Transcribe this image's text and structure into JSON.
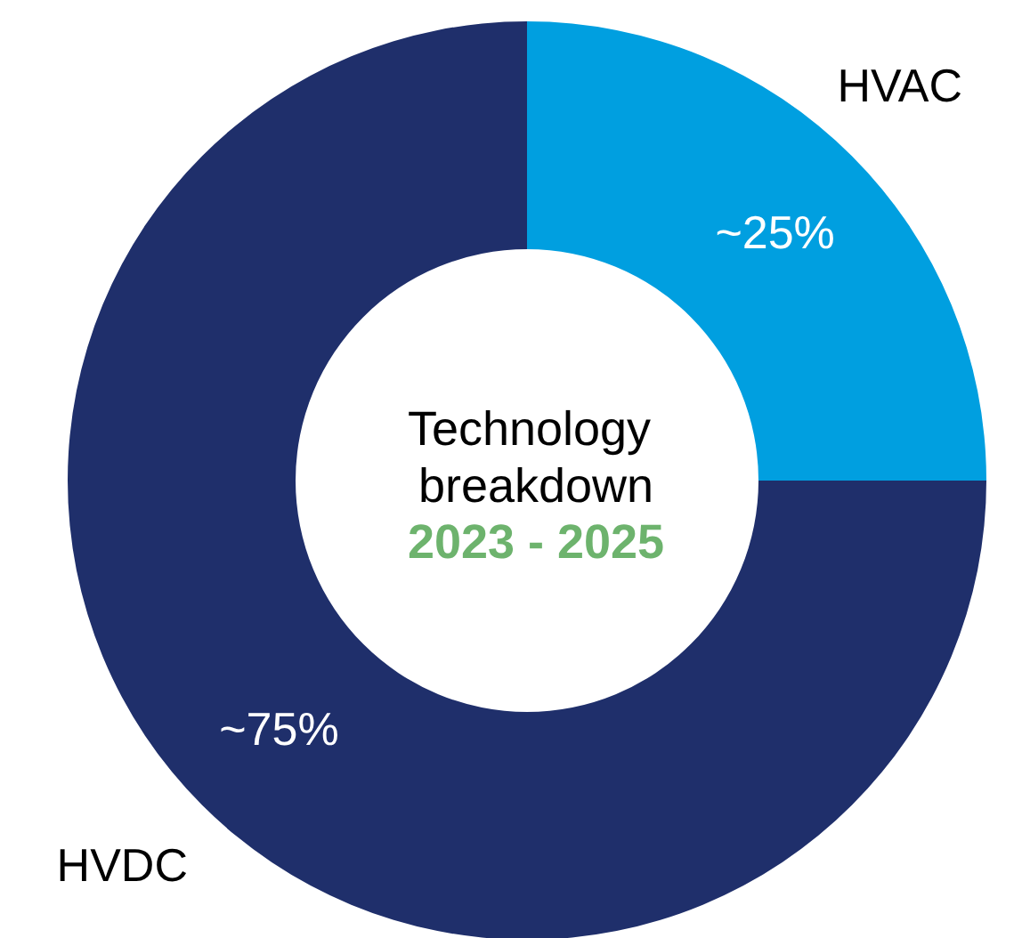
{
  "chart_data": {
    "type": "donut",
    "title": "Technology breakdown",
    "subtitle": "2023 - 2025",
    "categories": [
      "HVAC",
      "HVDC"
    ],
    "values": [
      25,
      75
    ],
    "colors": [
      "#009fe0",
      "#1f2f6b"
    ],
    "value_labels": [
      "~25%",
      "~75%"
    ]
  }
}
